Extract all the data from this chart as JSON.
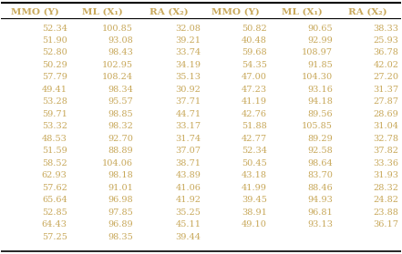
{
  "headers": [
    "MMO (Y)",
    "ML (X₁)",
    "RA (X₂)",
    "MMO (Y)",
    "ML (X₁)",
    "RA (X₂)"
  ],
  "rows": [
    [
      "52.34",
      "100.85",
      "32.08",
      "50.82",
      "90.65",
      "38.33"
    ],
    [
      "51.90",
      "93.08",
      "39.21",
      "40.48",
      "92.99",
      "25.93"
    ],
    [
      "52.80",
      "98.43",
      "33.74",
      "59.68",
      "108.97",
      "36.78"
    ],
    [
      "50.29",
      "102.95",
      "34.19",
      "54.35",
      "91.85",
      "42.02"
    ],
    [
      "57.79",
      "108.24",
      "35.13",
      "47.00",
      "104.30",
      "27.20"
    ],
    [
      "49.41",
      "98.34",
      "30.92",
      "47.23",
      "93.16",
      "31.37"
    ],
    [
      "53.28",
      "95.57",
      "37.71",
      "41.19",
      "94.18",
      "27.87"
    ],
    [
      "59.71",
      "98.85",
      "44.71",
      "42.76",
      "89.56",
      "28.69"
    ],
    [
      "53.32",
      "98.32",
      "33.17",
      "51.88",
      "105.85",
      "31.04"
    ],
    [
      "48.53",
      "92.70",
      "31.74",
      "42.77",
      "89.29",
      "32.78"
    ],
    [
      "51.59",
      "88.89",
      "37.07",
      "52.34",
      "92.58",
      "37.82"
    ],
    [
      "58.52",
      "104.06",
      "38.71",
      "50.45",
      "98.64",
      "33.36"
    ],
    [
      "62.93",
      "98.18",
      "43.89",
      "43.18",
      "83.70",
      "31.93"
    ],
    [
      "57.62",
      "91.01",
      "41.06",
      "41.99",
      "88.46",
      "28.32"
    ],
    [
      "65.64",
      "96.98",
      "41.92",
      "39.45",
      "94.93",
      "24.82"
    ],
    [
      "52.85",
      "97.85",
      "35.25",
      "38.91",
      "96.81",
      "23.88"
    ],
    [
      "64.43",
      "96.89",
      "45.11",
      "49.10",
      "93.13",
      "36.17"
    ],
    [
      "57.25",
      "98.35",
      "39.44",
      "",
      "",
      ""
    ]
  ],
  "header_color": "#c8a85a",
  "text_color": "#c8a85a",
  "header_bold": true,
  "bg_color": "#ffffff",
  "top_line_color": "#000000",
  "header_line_color": "#000000",
  "bottom_line_color": "#000000"
}
